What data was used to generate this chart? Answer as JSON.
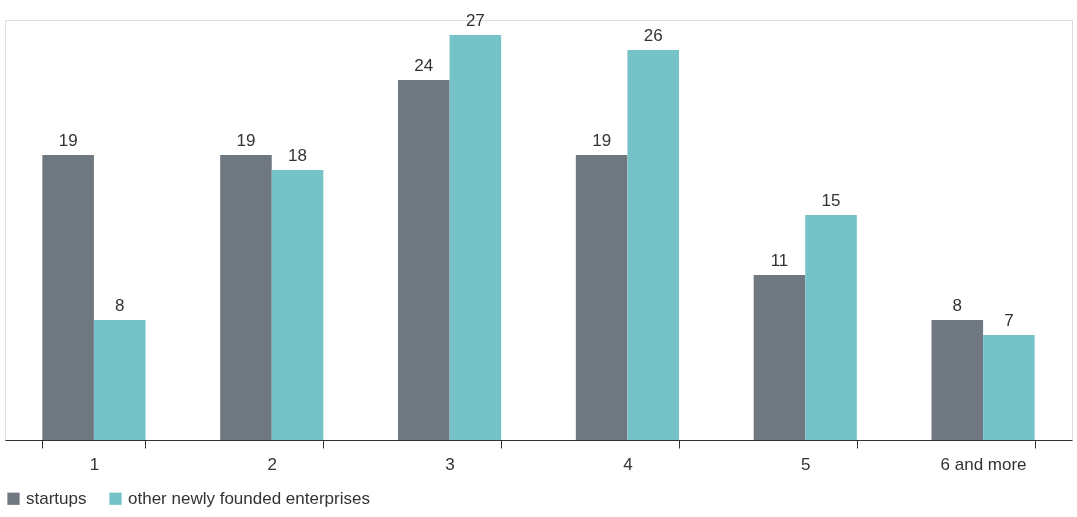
{
  "chart_data": {
    "type": "bar",
    "categories": [
      "1",
      "2",
      "3",
      "4",
      "5",
      "6 and more"
    ],
    "series": [
      {
        "name": "startups",
        "color": "#6f7780",
        "values": [
          19,
          19,
          24,
          19,
          11,
          8
        ]
      },
      {
        "name": "other newly founded enterprises",
        "color": "#75c3c8",
        "values": [
          8,
          18,
          27,
          26,
          15,
          7
        ]
      }
    ],
    "data_labels": true,
    "grid": false,
    "legend": "bottom"
  }
}
